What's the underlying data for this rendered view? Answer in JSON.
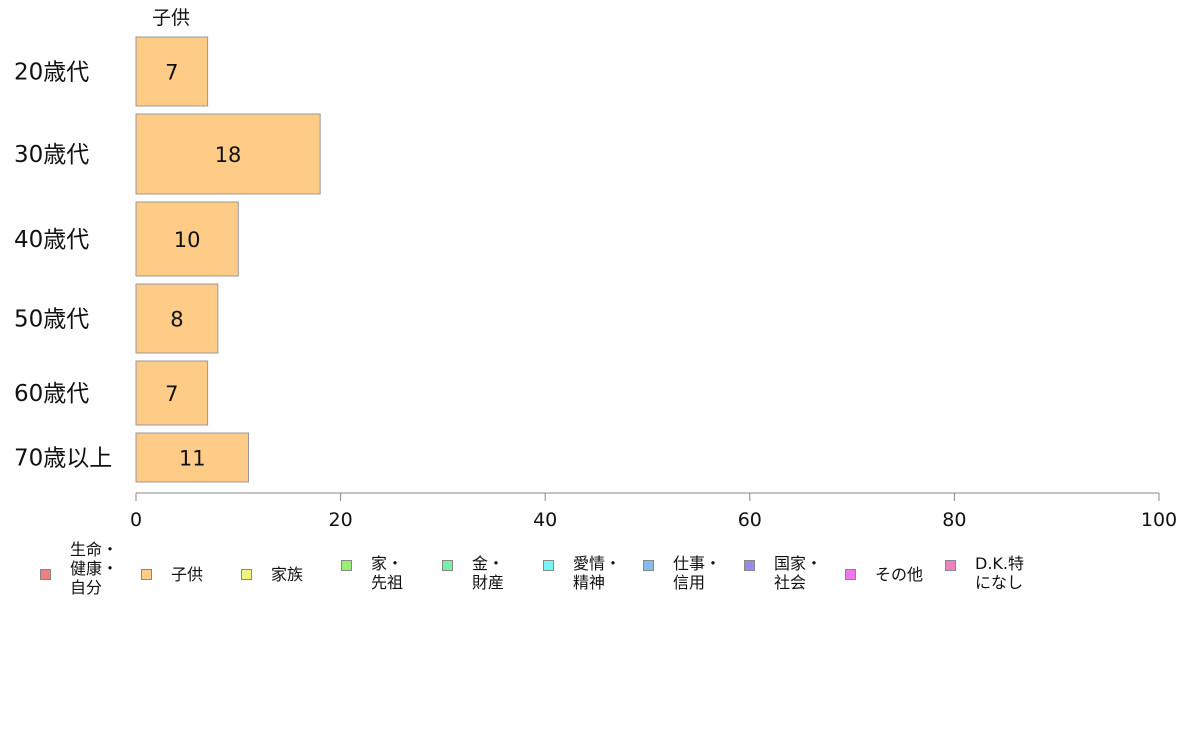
{
  "chart_data": {
    "type": "bar",
    "orientation": "horizontal",
    "series_label": "子供",
    "categories": [
      "20歳代",
      "30歳代",
      "40歳代",
      "50歳代",
      "60歳代",
      "70歳以上"
    ],
    "values": [
      7,
      18,
      10,
      8,
      7,
      11
    ],
    "xlim": [
      0,
      100
    ],
    "xticks": [
      "0",
      "20",
      "40",
      "60",
      "80",
      "100"
    ],
    "bar_color": "#ffcc88",
    "grid": false,
    "legend_position": "bottom",
    "legend": [
      {
        "label": "生命・\n健康・\n自分",
        "color": "#f08080"
      },
      {
        "label": "子供",
        "color": "#ffcc88"
      },
      {
        "label": "家族",
        "color": "#eef580"
      },
      {
        "label": "家・\n先祖",
        "color": "#99ee77"
      },
      {
        "label": "金・\n財産",
        "color": "#77eeaa"
      },
      {
        "label": "愛情・\n精神",
        "color": "#77f5f5"
      },
      {
        "label": "仕事・\n信用",
        "color": "#88bbee"
      },
      {
        "label": "国家・\n社会",
        "color": "#9988ee"
      },
      {
        "label": "その他",
        "color": "#ee77ee"
      },
      {
        "label": "D.K.特\nになし",
        "color": "#f080c0"
      }
    ]
  }
}
